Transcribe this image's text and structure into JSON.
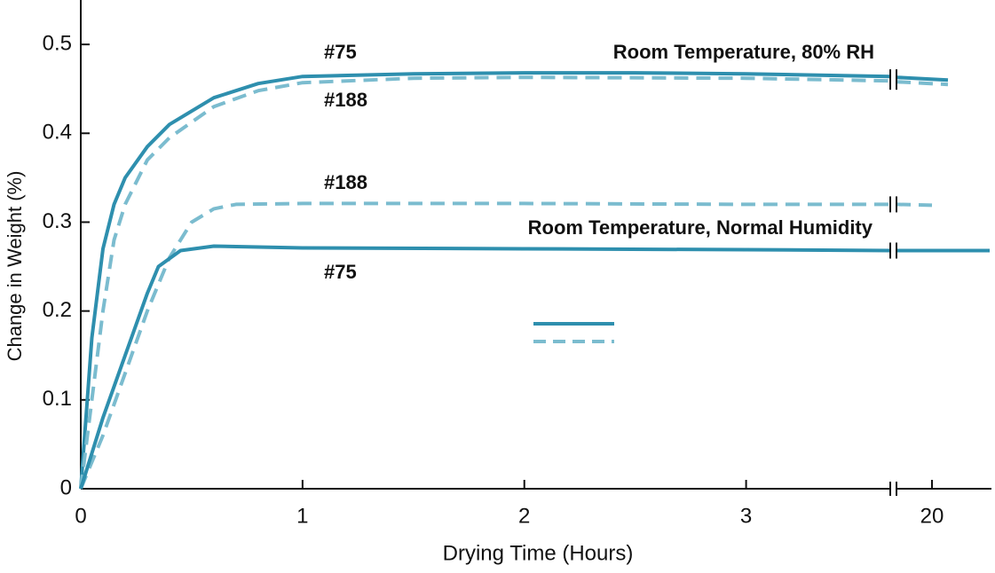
{
  "chart_data": {
    "type": "line",
    "x_label": "Drying Time (Hours)",
    "y_label": "Change in Weight (%)",
    "annotations": [
      "Room Temperature, 80% RH",
      "Room Temperature, Normal Humidity"
    ],
    "xlim": [
      0,
      20.67
    ],
    "xbreak": [
      3.65,
      19.6
    ],
    "xticks": [
      0,
      1,
      2,
      3,
      20
    ],
    "ylim": [
      0,
      0.55
    ],
    "yticks": [
      0,
      0.1,
      0.2,
      0.3,
      0.4,
      0.5
    ],
    "series": [
      {
        "name": "#75",
        "color": "#2e8fae",
        "dashed": false,
        "x": [
          0,
          0.05,
          0.1,
          0.15,
          0.2,
          0.3,
          0.4,
          0.6,
          0.8,
          1,
          1.5,
          2,
          2.5,
          3,
          3.65,
          19.6,
          20.18
        ],
        "values": [
          0,
          0.17,
          0.27,
          0.32,
          0.35,
          0.385,
          0.41,
          0.44,
          0.456,
          0.464,
          0.467,
          0.468,
          0.468,
          0.467,
          0.464,
          0.463,
          0.46
        ]
      },
      {
        "name": "#188",
        "color": "#7bbccf",
        "dashed": true,
        "x": [
          0,
          0.05,
          0.1,
          0.15,
          0.2,
          0.3,
          0.4,
          0.6,
          0.8,
          1,
          1.5,
          2,
          3,
          3.65,
          19.6,
          20.18
        ],
        "values": [
          0,
          0.1,
          0.2,
          0.28,
          0.32,
          0.37,
          0.395,
          0.43,
          0.448,
          0.457,
          0.462,
          0.463,
          0.462,
          0.459,
          0.458,
          0.455
        ]
      },
      {
        "name": "#188",
        "color": "#7bbccf",
        "dashed": true,
        "x": [
          0,
          0.1,
          0.2,
          0.3,
          0.4,
          0.5,
          0.6,
          0.7,
          1,
          2,
          3,
          3.65,
          19.6,
          20
        ],
        "values": [
          0,
          0.06,
          0.13,
          0.2,
          0.26,
          0.3,
          0.315,
          0.32,
          0.321,
          0.321,
          0.32,
          0.32,
          0.32,
          0.319
        ]
      },
      {
        "name": "#75",
        "color": "#2e8fae",
        "dashed": false,
        "x": [
          0,
          0.1,
          0.2,
          0.3,
          0.35,
          0.45,
          0.6,
          0.8,
          1,
          2,
          3,
          3.65,
          19.6,
          20.65
        ],
        "values": [
          0,
          0.08,
          0.15,
          0.22,
          0.25,
          0.268,
          0.273,
          0.272,
          0.271,
          0.27,
          0.269,
          0.268,
          0.268,
          0.268
        ]
      }
    ]
  }
}
